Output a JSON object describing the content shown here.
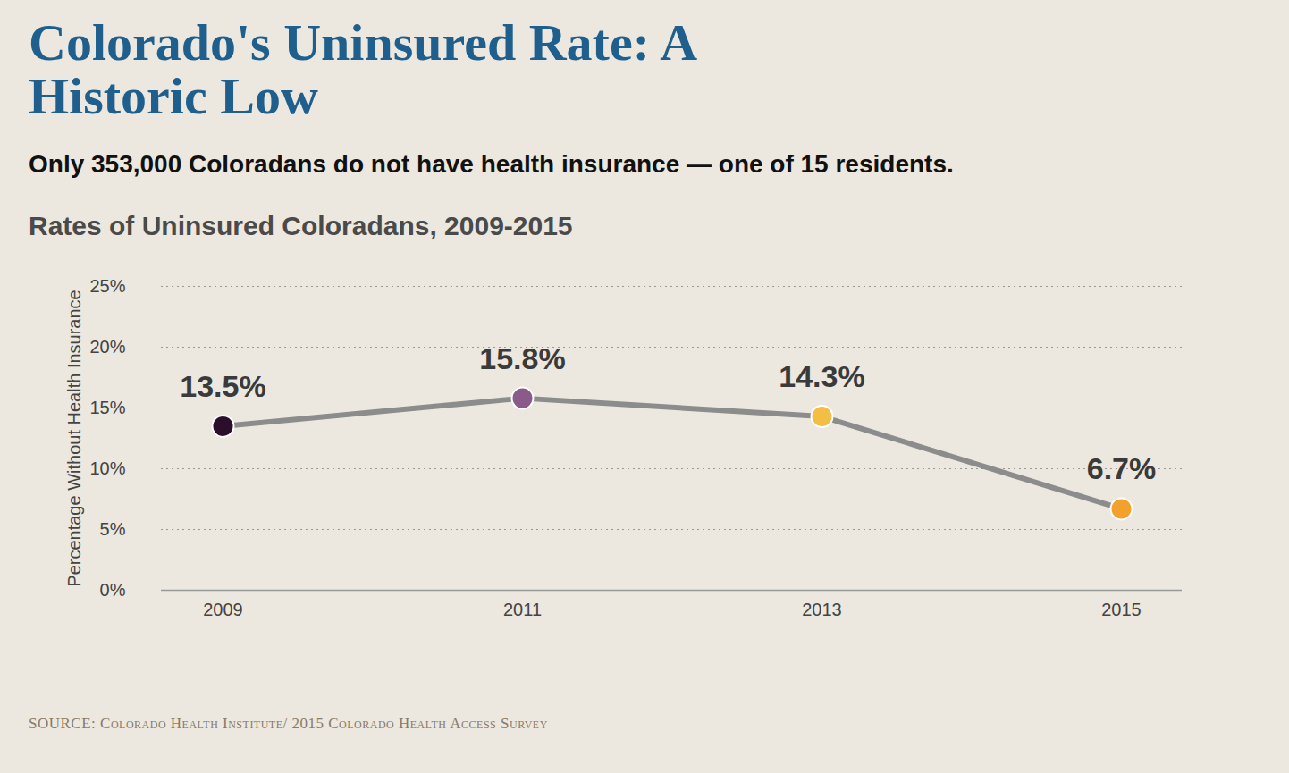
{
  "chart_data": {
    "type": "line",
    "title": "Colorado's Uninsured Rate: A Historic Low",
    "subtitle": "Only 353,000 Coloradans do not have health insurance — one of 15 residents.",
    "chart_heading": "Rates of Uninsured Coloradans, 2009-2015",
    "caption": "SOURCE: Colorado Health Institute/ 2015 Colorado Health Access Survey",
    "ylabel": "Percentage Without Health Insurance",
    "categories": [
      "2009",
      "2011",
      "2013",
      "2015"
    ],
    "values": [
      13.5,
      15.8,
      14.3,
      6.7
    ],
    "value_labels": [
      "13.5%",
      "15.8%",
      "14.3%",
      "6.7%"
    ],
    "color": "#8c8c8c",
    "colors": [
      "#2b0d2c",
      "#8a5a8b",
      "#f4bd45",
      "#f2a12c"
    ],
    "marker": "circle",
    "ylim": [
      0,
      25
    ],
    "yticks": [
      {
        "value": 0,
        "label": "0%"
      },
      {
        "value": 5,
        "label": "5%"
      },
      {
        "value": 10,
        "label": "10%"
      },
      {
        "value": 15,
        "label": "15%"
      },
      {
        "value": 20,
        "label": "20%"
      },
      {
        "value": 25,
        "label": "25%"
      }
    ],
    "grid": true,
    "data_labels": true
  }
}
